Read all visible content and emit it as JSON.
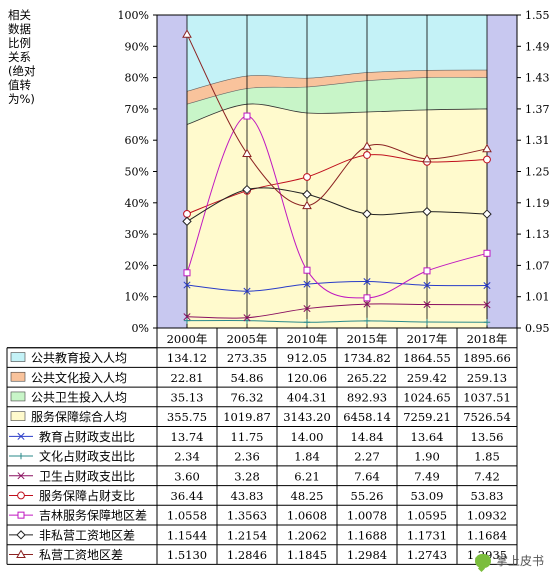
{
  "watermark": "掌上皮书",
  "chart_data": {
    "type": "area+line+table",
    "ylabel_lines": [
      "相关",
      "数据",
      "比例",
      "关系",
      "(绝对",
      "值转",
      "为%)"
    ],
    "categories": [
      "2000年",
      "2005年",
      "2010年",
      "2015年",
      "2017年",
      "2018年"
    ],
    "y_left": {
      "lim": [
        0,
        100
      ],
      "ticks": [
        "0%",
        "10%",
        "20%",
        "30%",
        "40%",
        "50%",
        "60%",
        "70%",
        "80%",
        "90%",
        "100%"
      ]
    },
    "y_right": {
      "lim": [
        0.95,
        1.55
      ],
      "ticks": [
        "0.95",
        "1.01",
        "1.07",
        "1.13",
        "1.19",
        "1.25",
        "1.31",
        "1.37",
        "1.43",
        "1.49",
        "1.55"
      ]
    },
    "stacked_area_shares": {
      "boundaries": [
        {
          "name": "教育上界",
          "values": [
            65.0,
            71.5,
            68.7,
            69.0,
            69.7,
            70.0
          ]
        },
        {
          "name": "卫生上界",
          "values": [
            71.5,
            76.5,
            77.0,
            79.0,
            80.0,
            80.0
          ]
        },
        {
          "name": "文化上界",
          "values": [
            75.6,
            80.5,
            79.8,
            81.6,
            82.3,
            82.4
          ]
        }
      ],
      "colors": {
        "服务保障综合人均": "#fffacd",
        "公共卫生投入人均": "#c8f5c8",
        "公共文化投入人均": "#f9c39c",
        "公共教育投入人均": "#c4f2f7"
      }
    },
    "series": [
      {
        "name": "公共教育投入人均",
        "legend": "area",
        "color": "#c4f2f7",
        "labels": [
          "134.12",
          "273.35",
          "912.05",
          "1734.82",
          "1864.55",
          "1895.66"
        ]
      },
      {
        "name": "公共文化投入人均",
        "legend": "area",
        "color": "#f9c39c",
        "labels": [
          "22.81",
          "54.86",
          "120.06",
          "265.22",
          "259.42",
          "259.13"
        ]
      },
      {
        "name": "公共卫生投入人均",
        "legend": "area",
        "color": "#c8f5c8",
        "labels": [
          "35.13",
          "76.32",
          "404.31",
          "892.93",
          "1024.65",
          "1037.51"
        ]
      },
      {
        "name": "服务保障综合人均",
        "legend": "area",
        "color": "#fffacd",
        "labels": [
          "355.75",
          "1019.87",
          "3143.20",
          "6458.14",
          "7259.21",
          "7526.54"
        ]
      },
      {
        "name": "教育占财政支出比",
        "legend": "line",
        "marker": "x",
        "color": "#2a3cc8",
        "axis": "left",
        "values": [
          13.74,
          11.75,
          14.0,
          14.84,
          13.64,
          13.56
        ],
        "labels": [
          "13.74",
          "11.75",
          "14.00",
          "14.84",
          "13.64",
          "13.56"
        ]
      },
      {
        "name": "文化占财政支出比",
        "legend": "line",
        "marker": "+",
        "color": "#2a8a8a",
        "axis": "left",
        "values": [
          2.34,
          2.36,
          1.84,
          2.27,
          1.9,
          1.85
        ],
        "labels": [
          "2.34",
          "2.36",
          "1.84",
          "2.27",
          "1.90",
          "1.85"
        ]
      },
      {
        "name": "卫生占财政支出比",
        "legend": "line",
        "marker": "x",
        "color": "#8a1060",
        "axis": "left",
        "values": [
          3.6,
          3.28,
          6.21,
          7.64,
          7.49,
          7.42
        ],
        "labels": [
          "3.60",
          "3.28",
          "6.21",
          "7.64",
          "7.49",
          "7.42"
        ]
      },
      {
        "name": "服务保障占财支比",
        "legend": "line",
        "marker": "circle",
        "color": "#c0101e",
        "axis": "left",
        "values": [
          36.44,
          43.83,
          48.25,
          55.26,
          53.09,
          53.83
        ],
        "labels": [
          "36.44",
          "43.83",
          "48.25",
          "55.26",
          "53.09",
          "53.83"
        ]
      },
      {
        "name": "吉林服务保障地区差",
        "legend": "line",
        "marker": "square",
        "color": "#c018c0",
        "axis": "right",
        "values": [
          1.0558,
          1.3563,
          1.0608,
          1.0078,
          1.0595,
          1.0932
        ],
        "labels": [
          "1.0558",
          "1.3563",
          "1.0608",
          "1.0078",
          "1.0595",
          "1.0932"
        ]
      },
      {
        "name": "非私营工资地区差",
        "legend": "line",
        "marker": "diamond",
        "color": "#222222",
        "axis": "right",
        "values": [
          1.1544,
          1.2154,
          1.2062,
          1.1688,
          1.1731,
          1.1684
        ],
        "labels": [
          "1.1544",
          "1.2154",
          "1.2062",
          "1.1688",
          "1.1731",
          "1.1684"
        ]
      },
      {
        "name": "私营工资地区差",
        "legend": "line",
        "marker": "triangle",
        "color": "#8b2222",
        "axis": "right",
        "values": [
          1.513,
          1.2846,
          1.1845,
          1.2984,
          1.2743,
          1.2935
        ],
        "labels": [
          "1.5130",
          "1.2846",
          "1.1845",
          "1.2984",
          "1.2743",
          "1.2935"
        ]
      }
    ],
    "colors": {
      "side_bands": "#c8c8f0",
      "axis": "#000000",
      "grid": "#000000"
    },
    "grid": false
  }
}
